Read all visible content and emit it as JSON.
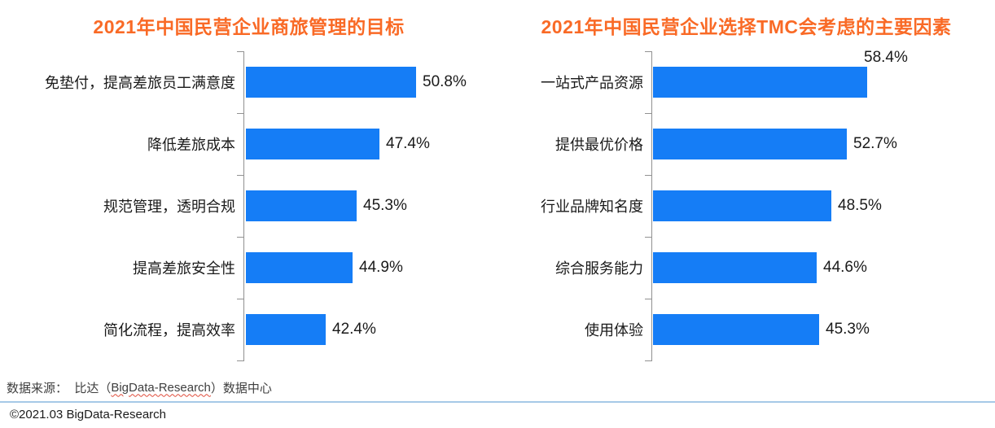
{
  "colors": {
    "bar": "#157DF6",
    "title": "#F96A26",
    "axis": "#919191",
    "label_text": "#1a1a1a",
    "divider": "#A6C9E7"
  },
  "chart_data": [
    {
      "type": "bar",
      "orientation": "horizontal",
      "title": "2021年中国民营企业商旅管理的目标",
      "categories": [
        "免垫付，提高差旅员工满意度",
        "降低差旅成本",
        "规范管理，透明合规",
        "提高差旅安全性",
        "简化流程，提高效率"
      ],
      "values": [
        50.8,
        47.4,
        45.3,
        44.9,
        42.4
      ],
      "unit": "%",
      "xlim": [
        35,
        55
      ],
      "grid": false,
      "legend": false,
      "value_label_above_indices": []
    },
    {
      "type": "bar",
      "orientation": "horizontal",
      "title": "2021年中国民营企业选择TMC会考虑的主要因素",
      "categories": [
        "一站式产品资源",
        "提供最优价格",
        "行业品牌知名度",
        "综合服务能力",
        "使用体验"
      ],
      "values": [
        58.4,
        52.7,
        48.5,
        44.6,
        45.3
      ],
      "unit": "%",
      "xlim": [
        0,
        65
      ],
      "grid": false,
      "legend": false,
      "value_label_above_indices": [
        0
      ]
    }
  ],
  "footer": {
    "source_prefix": "数据来源：  比达（",
    "source_brand": "BigData-Research",
    "source_suffix": "）数据中心",
    "copyright": "©2021.03 BigData-Research"
  }
}
